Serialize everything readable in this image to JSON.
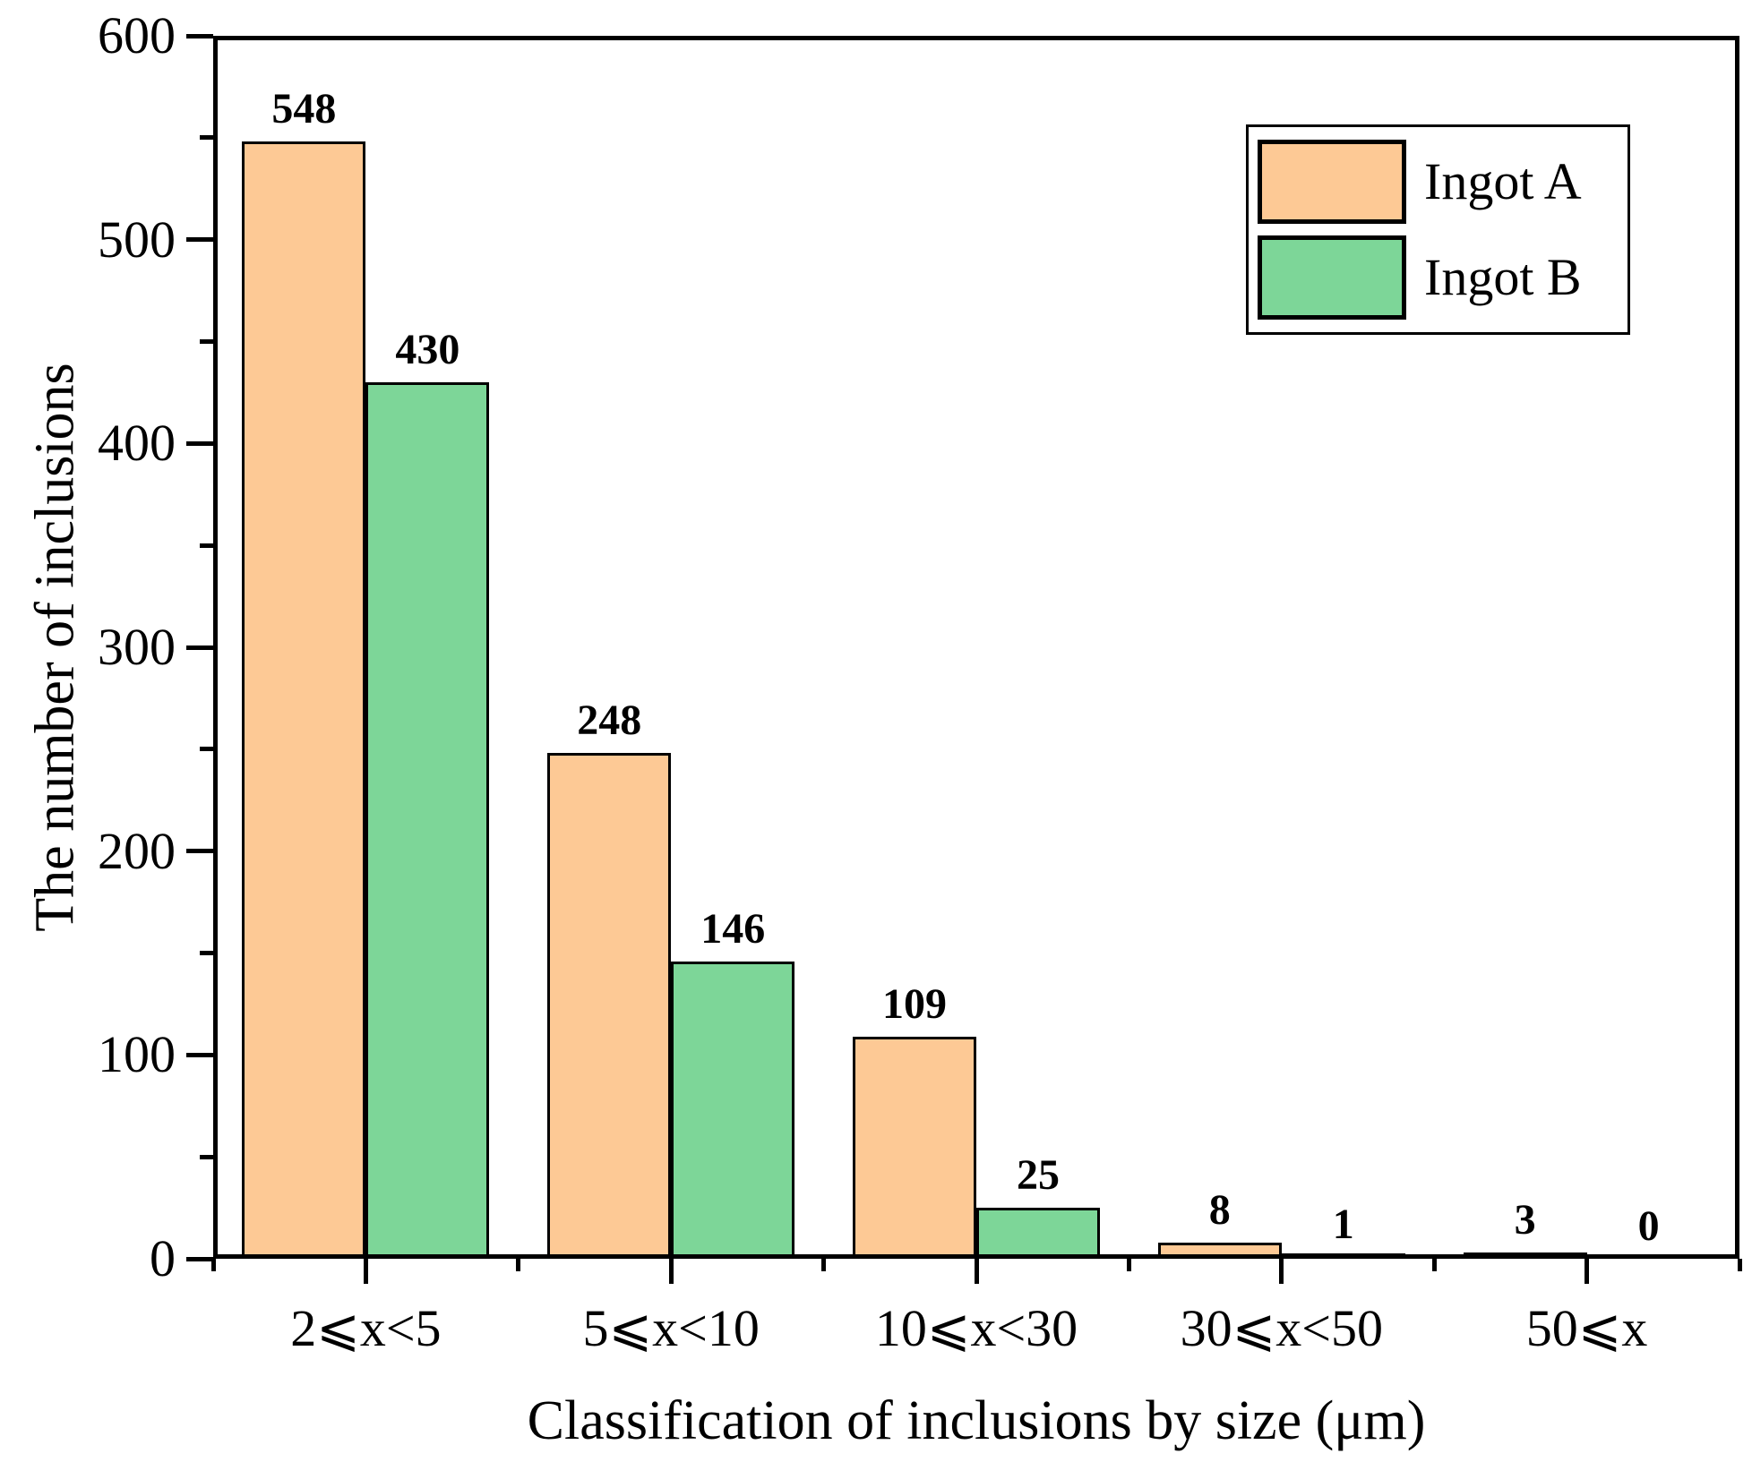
{
  "chart_data": {
    "type": "bar",
    "title": "",
    "xlabel": "Classification of inclusions by size (μm)",
    "ylabel": "The number of inclusions",
    "categories": [
      "2⩽x<5",
      "5⩽x<10",
      "10⩽x<30",
      "30⩽x<50",
      "50⩽x"
    ],
    "series": [
      {
        "name": "Ingot A",
        "color": "#FDC995",
        "values": [
          548,
          248,
          109,
          8,
          3
        ]
      },
      {
        "name": "Ingot B",
        "color": "#7DD698",
        "values": [
          430,
          146,
          25,
          1,
          0
        ]
      }
    ],
    "value_labels": true,
    "ylim": [
      0,
      600
    ],
    "y_major_step": 100,
    "y_minor_step": 50,
    "y_tick_labels": [
      "0",
      "100",
      "200",
      "300",
      "400",
      "500",
      "600"
    ],
    "grid": false,
    "legend_position": "top-right",
    "bar_outline_color": "#000000",
    "axis_color": "#000000",
    "background_color": "#ffffff"
  }
}
